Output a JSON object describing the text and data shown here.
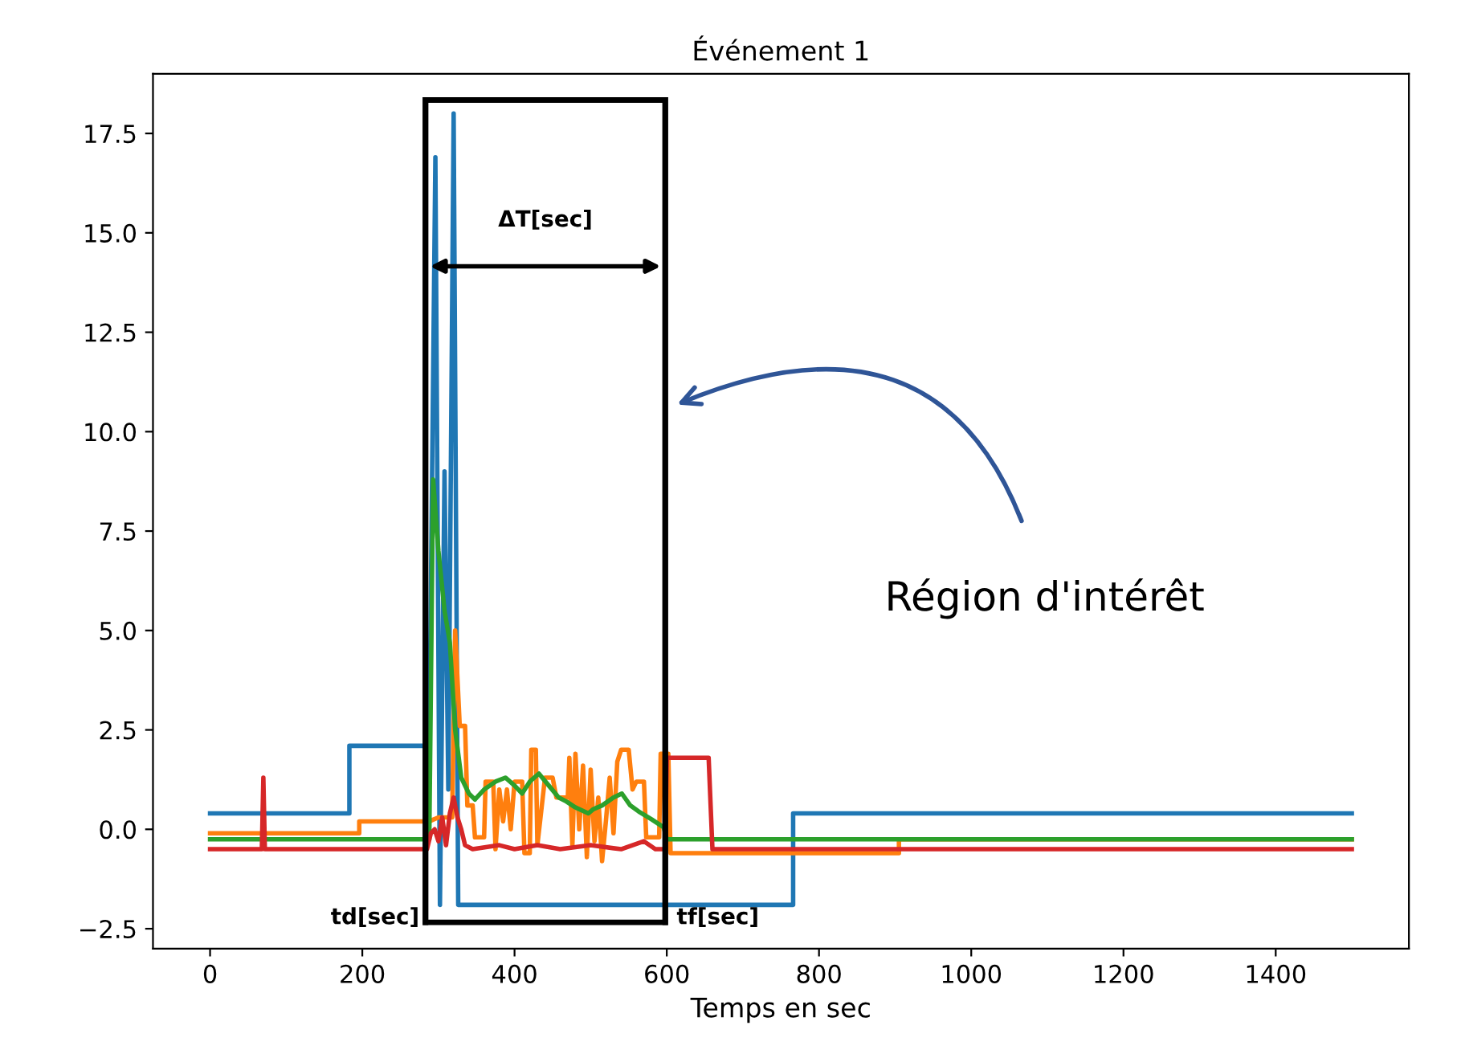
{
  "chart_data": {
    "type": "line",
    "title": "Événement 1",
    "xlabel": "Temps en sec",
    "xlim": [
      -75,
      1575
    ],
    "ylim": [
      -3.0,
      19.0
    ],
    "xticks": [
      0,
      200,
      400,
      600,
      800,
      1000,
      1200,
      1400
    ],
    "yticks": [
      {
        "value": -2.5,
        "label": "−2.5"
      },
      {
        "value": 0,
        "label": "0.0"
      },
      2.5,
      {
        "value": 5,
        "label": "5.0"
      },
      7.5,
      {
        "value": 10,
        "label": "10.0"
      },
      12.5,
      {
        "value": 15,
        "label": "15.0"
      },
      17.5
    ],
    "grid": false,
    "series": [
      {
        "color": "#1f77b4",
        "x": [
          0,
          183,
          183,
          288,
          296,
          302,
          308,
          313,
          320,
          326,
          766,
          766,
          1500
        ],
        "values": [
          0.4,
          0.4,
          2.1,
          2.1,
          16.9,
          -1.9,
          9.0,
          1.0,
          18.0,
          -1.9,
          -1.9,
          0.4,
          0.4
        ]
      },
      {
        "color": "#ff7f0e",
        "x": [
          0,
          196,
          196,
          288,
          300,
          318,
          322,
          328,
          335,
          338,
          345,
          348,
          360,
          362,
          372,
          375,
          380,
          385,
          390,
          395,
          400,
          410,
          413,
          420,
          422,
          428,
          430,
          440,
          450,
          455,
          470,
          472,
          476,
          480,
          485,
          490,
          495,
          500,
          505,
          510,
          515,
          520,
          525,
          530,
          535,
          540,
          550,
          555,
          560,
          570,
          573,
          590,
          592,
          596,
          598,
          602,
          605,
          905,
          905,
          1500
        ],
        "values": [
          -0.1,
          -0.1,
          0.2,
          0.2,
          0.3,
          0.3,
          5.0,
          2.6,
          2.6,
          0.6,
          0.6,
          -0.2,
          -0.2,
          1.2,
          1.2,
          -0.5,
          1.0,
          0.2,
          1.0,
          0.0,
          1.2,
          1.2,
          -0.6,
          -0.6,
          2.0,
          2.0,
          -0.4,
          1.3,
          1.3,
          0.8,
          0.8,
          1.8,
          -0.4,
          1.9,
          0.0,
          1.6,
          -0.7,
          1.5,
          -0.3,
          0.8,
          -0.8,
          0.2,
          1.3,
          -0.1,
          1.7,
          2.0,
          2.0,
          1.0,
          1.2,
          1.2,
          -0.2,
          -0.2,
          1.9,
          1.9,
          -0.6,
          1.9,
          -0.6,
          -0.6,
          -0.25,
          -0.25
        ]
      },
      {
        "color": "#2ca02c",
        "x": [
          0,
          288,
          293,
          300,
          308,
          315,
          322,
          330,
          340,
          348,
          360,
          375,
          388,
          400,
          410,
          420,
          432,
          445,
          458,
          468,
          480,
          497,
          503,
          515,
          530,
          541,
          552,
          563,
          580,
          596,
          600,
          1500
        ],
        "values": [
          -0.25,
          -0.25,
          8.8,
          7.0,
          5.5,
          4.7,
          2.5,
          1.3,
          0.9,
          0.75,
          1.0,
          1.2,
          1.3,
          1.1,
          0.9,
          1.2,
          1.4,
          1.1,
          0.8,
          0.7,
          0.55,
          0.4,
          0.5,
          0.6,
          0.8,
          0.9,
          0.6,
          0.45,
          0.25,
          0.05,
          -0.25,
          -0.25
        ]
      },
      {
        "color": "#d62728",
        "x": [
          0,
          68,
          70,
          72,
          285,
          290,
          295,
          300,
          305,
          310,
          315,
          320,
          325,
          330,
          335,
          345,
          380,
          400,
          430,
          460,
          500,
          540,
          570,
          585,
          598,
          600,
          655,
          660,
          1500
        ],
        "values": [
          -0.5,
          -0.5,
          1.3,
          -0.5,
          -0.5,
          -0.1,
          0.0,
          -0.3,
          0.3,
          -0.4,
          0.4,
          0.8,
          0.3,
          0.0,
          -0.4,
          -0.5,
          -0.4,
          -0.5,
          -0.4,
          -0.5,
          -0.4,
          -0.5,
          -0.3,
          -0.5,
          -0.5,
          1.8,
          1.8,
          -0.5,
          -0.5
        ]
      }
    ],
    "ref_lines": [
      {
        "axis": "x",
        "value": 283,
        "label": "td[sec]",
        "color": "#000000"
      },
      {
        "axis": "x",
        "value": 598,
        "label": "tf[sec]",
        "color": "#000000"
      }
    ],
    "annotations": [
      "ΔT[sec]",
      "Région d'intérêt"
    ]
  }
}
